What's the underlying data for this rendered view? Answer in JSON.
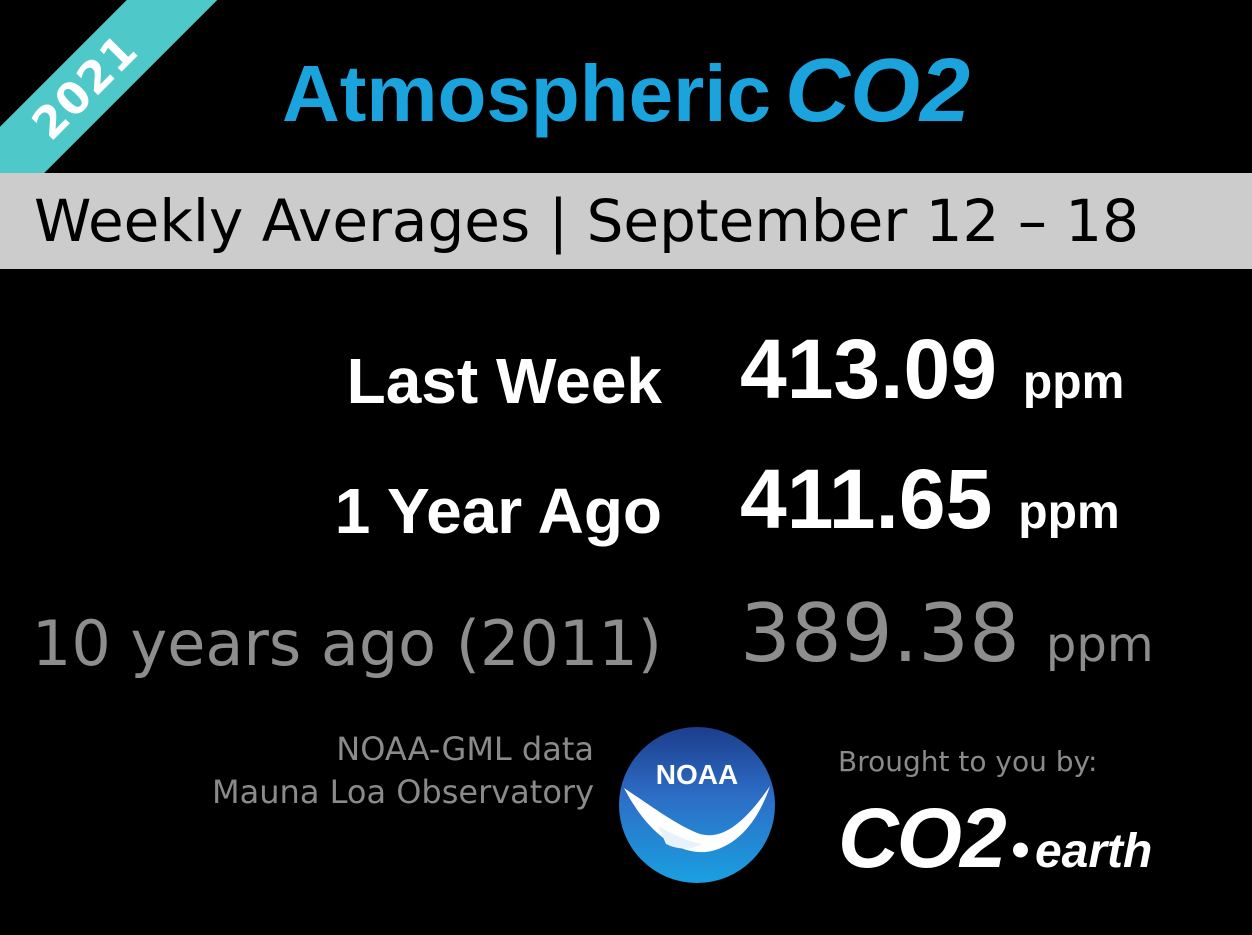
{
  "ribbon": {
    "year": "2021",
    "color": "#4ec8c9"
  },
  "title": {
    "word": "Atmospheric",
    "chem": "CO2",
    "color": "#1aa3dc"
  },
  "band": {
    "text": "Weekly Averages  |  September 12 – 18",
    "color": "#cccccc"
  },
  "rows": [
    {
      "label": "Last Week",
      "value": "413.09",
      "unit": "ppm"
    },
    {
      "label": "1 Year Ago",
      "value": "411.65",
      "unit": "ppm"
    },
    {
      "label": "10 years ago (2011)",
      "value": "389.38",
      "unit": "ppm"
    }
  ],
  "source": {
    "line1": "NOAA-GML data",
    "line2": "Mauna Loa Observatory"
  },
  "noaa_logo": {
    "icon": "noaa-logo-icon",
    "text": "NOAA"
  },
  "credit": {
    "brought": "Brought to you by:",
    "logo_big": "CO2",
    "logo_dot": "•",
    "logo_small": "earth"
  }
}
